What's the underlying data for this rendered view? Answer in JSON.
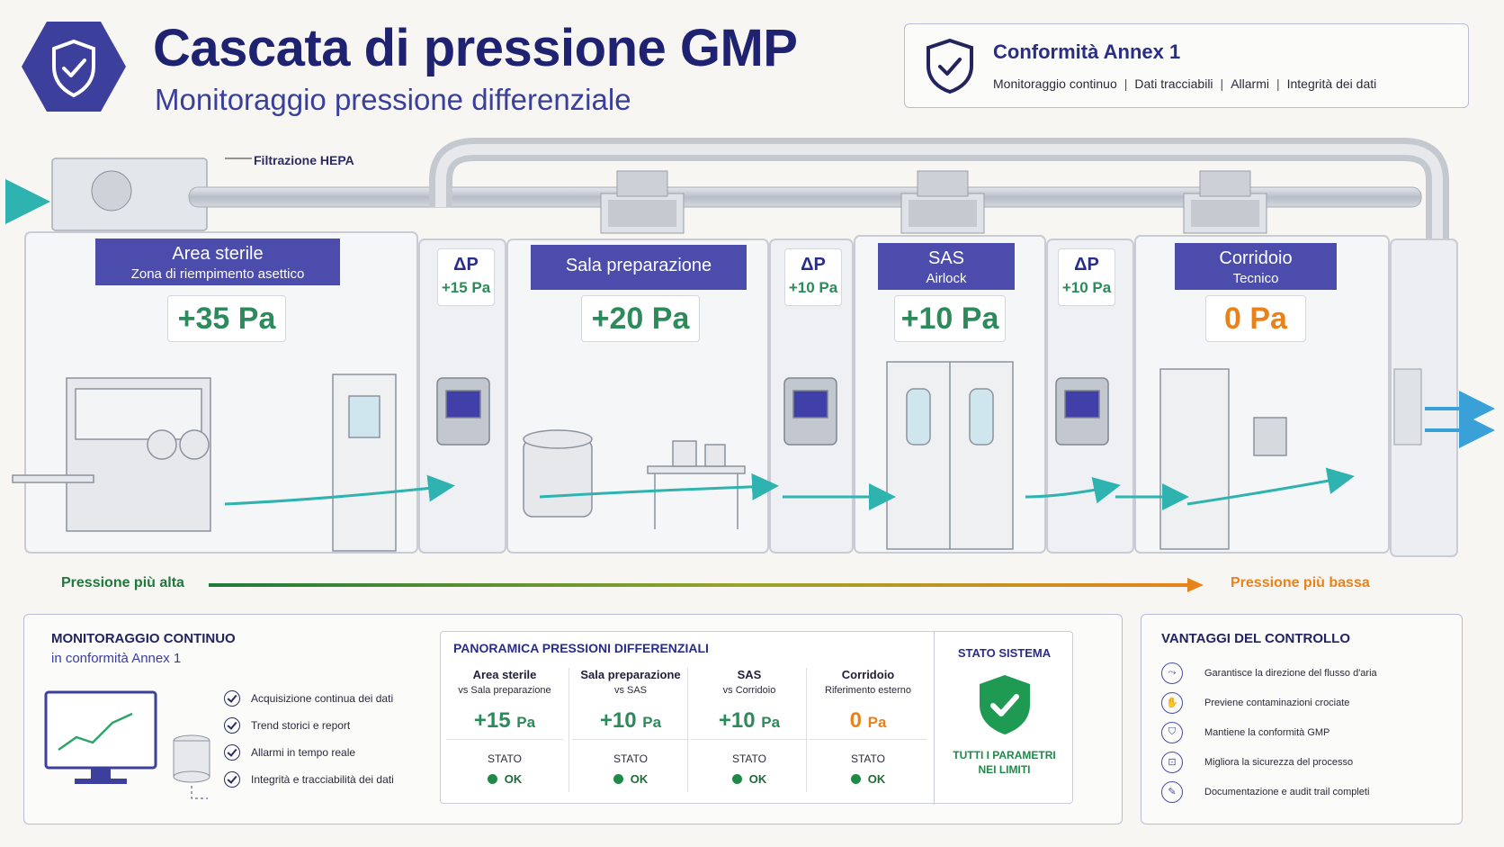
{
  "header": {
    "title": "Cascata di pressione GMP",
    "subtitle": "Monitoraggio pressione differenziale"
  },
  "annex": {
    "title": "Conformità Annex 1",
    "items": [
      "Monitoraggio continuo",
      "Dati tracciabili",
      "Allarmi",
      "Integrità dei dati"
    ]
  },
  "diagram": {
    "hepa_label": "Filtrazione HEPA",
    "rooms": [
      {
        "name": "Area sterile",
        "sub": "Zona di riempimento asettico",
        "pressure": "+35 Pa"
      },
      {
        "name": "Sala preparazione",
        "sub": "",
        "pressure": "+20 Pa"
      },
      {
        "name": "SAS",
        "sub": "Airlock",
        "pressure": "+10 Pa"
      },
      {
        "name": "Corridoio",
        "sub": "Tecnico",
        "pressure": "0 Pa"
      }
    ],
    "dp": [
      {
        "label": "ΔP",
        "value": "+15 Pa"
      },
      {
        "label": "ΔP",
        "value": "+10 Pa"
      },
      {
        "label": "ΔP",
        "value": "+10 Pa"
      }
    ],
    "high_label": "Pressione più alta",
    "low_label": "Pressione più bassa"
  },
  "monitoring": {
    "title": "MONITORAGGIO CONTINUO",
    "subtitle": "in conformità Annex 1",
    "items": [
      "Acquisizione continua dei dati",
      "Trend storici e report",
      "Allarmi in tempo reale",
      "Integrità e tracciabilità dei dati"
    ]
  },
  "overview": {
    "title": "PANORAMICA PRESSIONI DIFFERENZIALI",
    "columns": [
      {
        "h1": "Area sterile",
        "h2": "vs Sala preparazione",
        "value": "+15",
        "unit": "Pa",
        "status_label": "STATO",
        "status": "OK"
      },
      {
        "h1": "Sala preparazione",
        "h2": "vs SAS",
        "value": "+10",
        "unit": "Pa",
        "status_label": "STATO",
        "status": "OK"
      },
      {
        "h1": "SAS",
        "h2": "vs Corridoio",
        "value": "+10",
        "unit": "Pa",
        "status_label": "STATO",
        "status": "OK"
      },
      {
        "h1": "Corridoio",
        "h2": "Riferimento esterno",
        "value": "0",
        "unit": "Pa",
        "status_label": "STATO",
        "status": "OK"
      }
    ],
    "system_title": "STATO SISTEMA",
    "system_text_1": "TUTTI I PARAMETRI",
    "system_text_2": "NEI LIMITI"
  },
  "advantages": {
    "title": "VANTAGGI DEL CONTROLLO",
    "items": [
      {
        "icon": "airflow-icon",
        "text": "Garantisce la direzione del flusso d'aria"
      },
      {
        "icon": "hand-icon",
        "text": "Previene contaminazioni crociate"
      },
      {
        "icon": "shield-icon",
        "text": "Mantiene la conformità GMP"
      },
      {
        "icon": "lock-icon",
        "text": "Migliora la sicurezza del processo"
      },
      {
        "icon": "document-icon",
        "text": "Documentazione e audit trail completi"
      }
    ]
  },
  "colors": {
    "brand": "#1f2270",
    "accent": "#4b4cab",
    "positive": "#2d8a5a",
    "zero": "#e8831c",
    "airflow": "#2fb3b0"
  }
}
